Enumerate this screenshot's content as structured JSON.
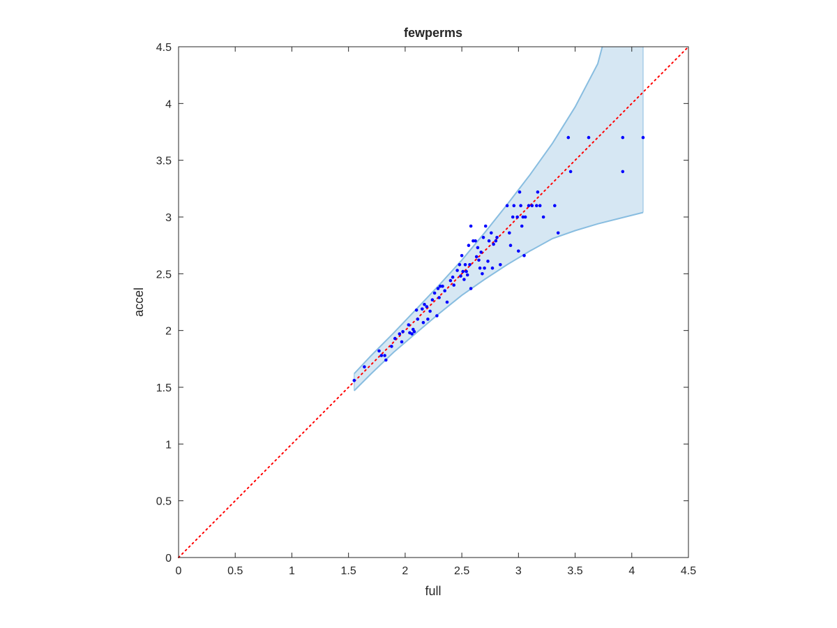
{
  "chart_data": {
    "type": "scatter",
    "title": "fewperms",
    "xlabel": "full",
    "ylabel": "accel",
    "xlim": [
      0,
      4.5
    ],
    "ylim": [
      0,
      4.5
    ],
    "xticks": [
      0,
      0.5,
      1,
      1.5,
      2,
      2.5,
      3,
      3.5,
      4,
      4.5
    ],
    "yticks": [
      0,
      0.5,
      1,
      1.5,
      2,
      2.5,
      3,
      3.5,
      4,
      4.5
    ],
    "xtick_labels": [
      "0",
      "0.5",
      "1",
      "1.5",
      "2",
      "2.5",
      "3",
      "3.5",
      "4",
      "4.5"
    ],
    "ytick_labels": [
      "0",
      "0.5",
      "1",
      "1.5",
      "2",
      "2.5",
      "3",
      "3.5",
      "4",
      "4.5"
    ],
    "grid": false,
    "box": true,
    "reference_line": {
      "x": [
        0,
        4.5
      ],
      "y": [
        0,
        4.5
      ],
      "style": "dotted",
      "color": "#ff0000"
    },
    "band": {
      "color_fill": "#d6e7f3",
      "color_edge": "#88bde0",
      "upper": [
        [
          1.55,
          1.62
        ],
        [
          1.7,
          1.78
        ],
        [
          1.9,
          1.98
        ],
        [
          2.1,
          2.19
        ],
        [
          2.3,
          2.4
        ],
        [
          2.5,
          2.62
        ],
        [
          2.7,
          2.86
        ],
        [
          2.9,
          3.11
        ],
        [
          3.1,
          3.37
        ],
        [
          3.3,
          3.65
        ],
        [
          3.5,
          3.97
        ],
        [
          3.6,
          4.16
        ],
        [
          3.7,
          4.35
        ],
        [
          3.74,
          4.5
        ],
        [
          4.1,
          4.5
        ]
      ],
      "lower": [
        [
          4.1,
          3.04
        ],
        [
          3.9,
          2.99
        ],
        [
          3.7,
          2.94
        ],
        [
          3.5,
          2.88
        ],
        [
          3.3,
          2.81
        ],
        [
          3.1,
          2.7
        ],
        [
          2.9,
          2.58
        ],
        [
          2.7,
          2.45
        ],
        [
          2.5,
          2.31
        ],
        [
          2.3,
          2.15
        ],
        [
          2.1,
          1.98
        ],
        [
          1.9,
          1.81
        ],
        [
          1.7,
          1.62
        ],
        [
          1.55,
          1.47
        ]
      ]
    },
    "series": [
      {
        "color": "#0000ff",
        "points": [
          [
            1.55,
            1.56
          ],
          [
            1.64,
            1.68
          ],
          [
            1.77,
            1.82
          ],
          [
            1.79,
            1.78
          ],
          [
            1.82,
            1.78
          ],
          [
            1.83,
            1.74
          ],
          [
            1.88,
            1.86
          ],
          [
            1.91,
            1.93
          ],
          [
            1.95,
            1.97
          ],
          [
            1.97,
            1.9
          ],
          [
            1.98,
            1.99
          ],
          [
            2.03,
            2.05
          ],
          [
            2.04,
            1.98
          ],
          [
            2.06,
            1.97
          ],
          [
            2.07,
            2.01
          ],
          [
            2.08,
            1.99
          ],
          [
            2.1,
            2.18
          ],
          [
            2.11,
            2.1
          ],
          [
            2.15,
            2.19
          ],
          [
            2.16,
            2.07
          ],
          [
            2.17,
            2.23
          ],
          [
            2.19,
            2.21
          ],
          [
            2.2,
            2.1
          ],
          [
            2.22,
            2.17
          ],
          [
            2.24,
            2.27
          ],
          [
            2.26,
            2.33
          ],
          [
            2.28,
            2.13
          ],
          [
            2.29,
            2.37
          ],
          [
            2.3,
            2.29
          ],
          [
            2.31,
            2.39
          ],
          [
            2.33,
            2.39
          ],
          [
            2.35,
            2.35
          ],
          [
            2.37,
            2.25
          ],
          [
            2.4,
            2.44
          ],
          [
            2.42,
            2.47
          ],
          [
            2.43,
            2.4
          ],
          [
            2.46,
            2.53
          ],
          [
            2.48,
            2.58
          ],
          [
            2.49,
            2.48
          ],
          [
            2.5,
            2.66
          ],
          [
            2.51,
            2.52
          ],
          [
            2.52,
            2.45
          ],
          [
            2.53,
            2.58
          ],
          [
            2.54,
            2.52
          ],
          [
            2.55,
            2.49
          ],
          [
            2.56,
            2.75
          ],
          [
            2.57,
            2.58
          ],
          [
            2.58,
            2.37
          ],
          [
            2.58,
            2.92
          ],
          [
            2.6,
            2.79
          ],
          [
            2.62,
            2.79
          ],
          [
            2.63,
            2.65
          ],
          [
            2.64,
            2.73
          ],
          [
            2.65,
            2.62
          ],
          [
            2.66,
            2.55
          ],
          [
            2.67,
            2.69
          ],
          [
            2.68,
            2.5
          ],
          [
            2.69,
            2.82
          ],
          [
            2.7,
            2.55
          ],
          [
            2.71,
            2.92
          ],
          [
            2.73,
            2.61
          ],
          [
            2.74,
            2.79
          ],
          [
            2.76,
            2.86
          ],
          [
            2.77,
            2.55
          ],
          [
            2.78,
            2.76
          ],
          [
            2.8,
            2.79
          ],
          [
            2.81,
            2.82
          ],
          [
            2.84,
            2.58
          ],
          [
            2.9,
            3.1
          ],
          [
            2.92,
            2.86
          ],
          [
            2.93,
            2.75
          ],
          [
            2.95,
            3.0
          ],
          [
            2.96,
            3.1
          ],
          [
            2.99,
            3.0
          ],
          [
            3.0,
            2.7
          ],
          [
            3.01,
            3.22
          ],
          [
            3.02,
            3.1
          ],
          [
            3.03,
            2.92
          ],
          [
            3.04,
            3.0
          ],
          [
            3.05,
            2.66
          ],
          [
            3.06,
            3.0
          ],
          [
            3.09,
            3.1
          ],
          [
            3.12,
            3.1
          ],
          [
            3.16,
            3.1
          ],
          [
            3.17,
            3.22
          ],
          [
            3.19,
            3.1
          ],
          [
            3.22,
            3.0
          ],
          [
            3.32,
            3.1
          ],
          [
            3.35,
            2.86
          ],
          [
            3.44,
            3.7
          ],
          [
            3.46,
            3.4
          ],
          [
            3.62,
            3.7
          ],
          [
            3.92,
            3.7
          ],
          [
            3.92,
            3.4
          ],
          [
            4.1,
            3.7
          ]
        ]
      }
    ]
  }
}
